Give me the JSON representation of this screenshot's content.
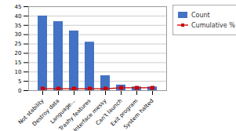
{
  "chart_data": {
    "type": "bar",
    "categories": [
      "Not stability",
      "Destroy data",
      "Language...",
      "Trashy features",
      "Interface messy",
      "Can't launch",
      "Exit program",
      "System halted"
    ],
    "series": [
      {
        "name": "Count",
        "type": "bar",
        "color": "#4472C4",
        "values": [
          40,
          37,
          32,
          26,
          8,
          3,
          2,
          2
        ]
      },
      {
        "name": "Cumulative %",
        "type": "line",
        "color": "#CC0000",
        "marker": "square",
        "values": [
          1.0,
          1.0,
          1.0,
          1.0,
          1.0,
          1.5,
          1.5,
          1.5
        ]
      }
    ],
    "ylim": [
      0,
      45
    ],
    "yticks": [
      0,
      5,
      10,
      15,
      20,
      25,
      30,
      35,
      40,
      45
    ],
    "grid": true,
    "legend": "right"
  }
}
